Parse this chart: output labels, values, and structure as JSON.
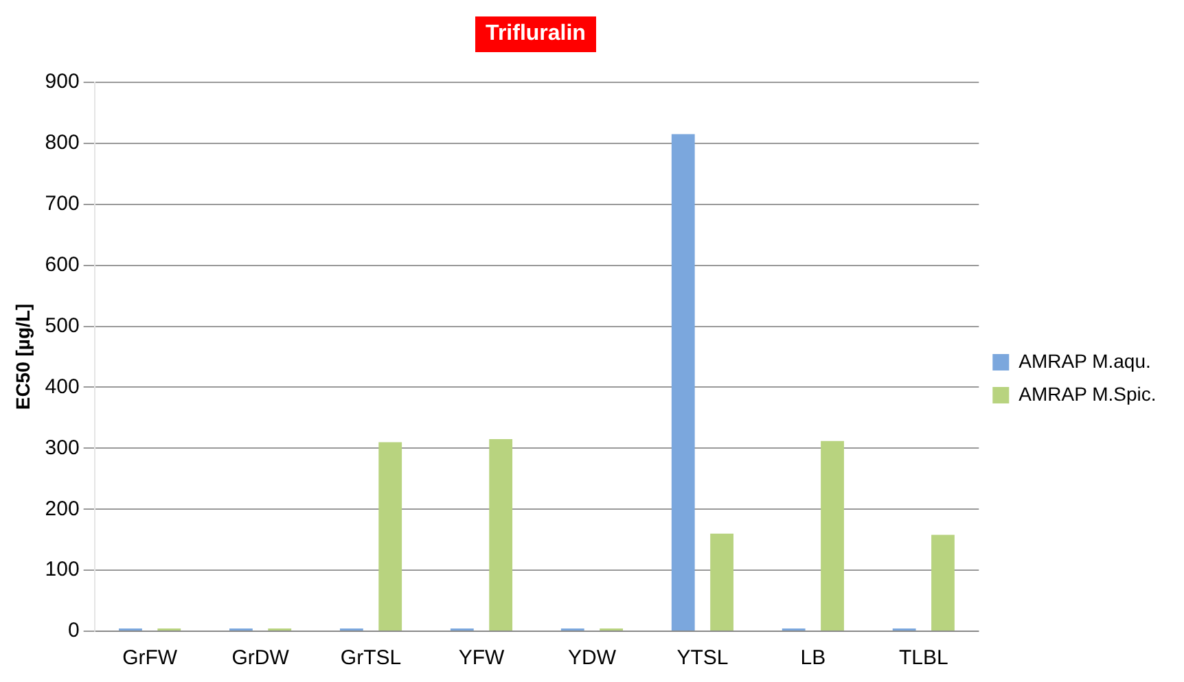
{
  "chart_data": {
    "type": "bar",
    "title": "Trifluralin",
    "ylabel": "EC50 [µg/L]",
    "categories": [
      "GrFW",
      "GrDW",
      "GrTSL",
      "YFW",
      "YDW",
      "YTSL",
      "LB",
      "TLBL"
    ],
    "series": [
      {
        "name": "AMRAP M.aqu.",
        "color": "#7ba7dd",
        "values": [
          0,
          0,
          0,
          0,
          0,
          815,
          0,
          0
        ]
      },
      {
        "name": "AMRAP M.Spic.",
        "color": "#b8d37f",
        "values": [
          0,
          0,
          310,
          315,
          0,
          160,
          312,
          158
        ]
      }
    ],
    "ylim": [
      0,
      900
    ],
    "yticks": [
      0,
      100,
      200,
      300,
      400,
      500,
      600,
      700,
      800,
      900
    ],
    "grid": "y",
    "legend": "right"
  }
}
